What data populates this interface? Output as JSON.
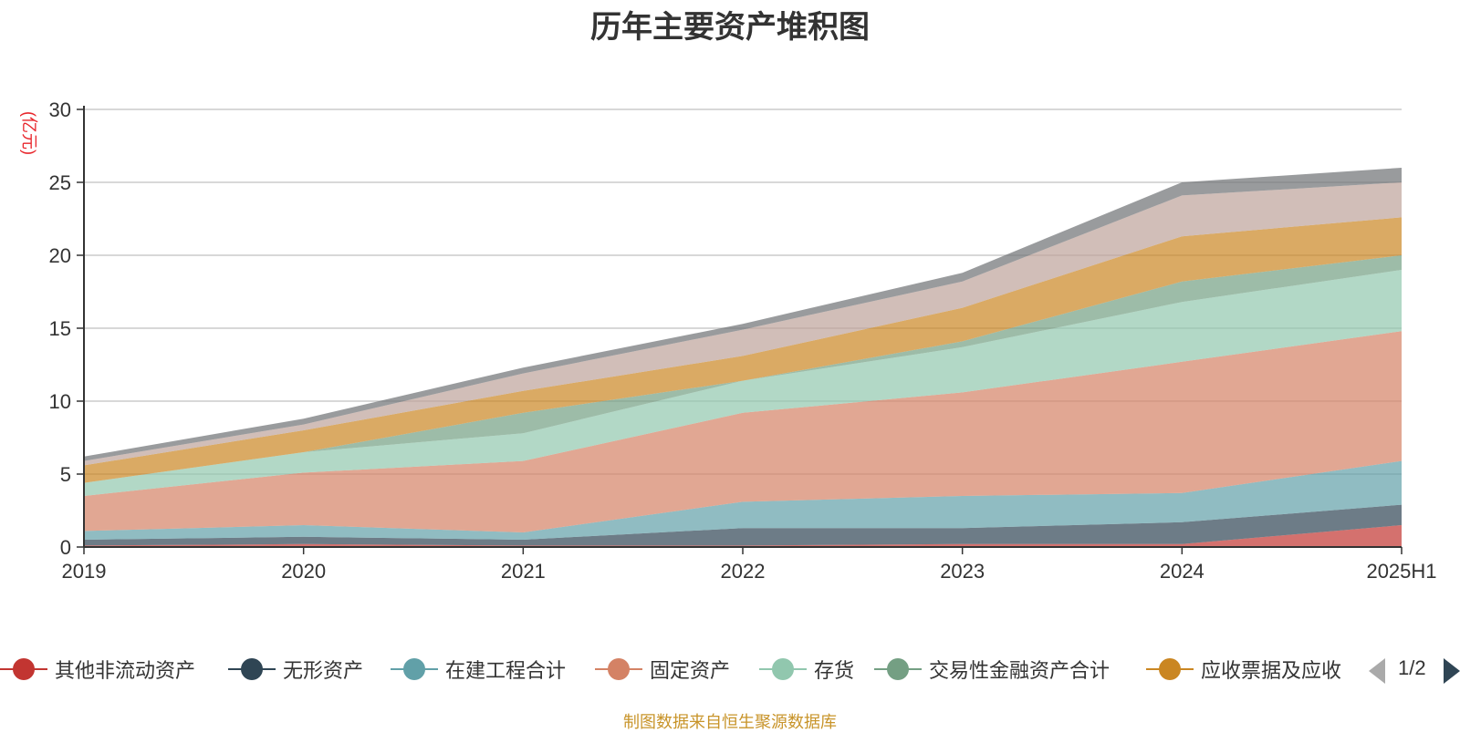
{
  "title": "历年主要资产堆积图",
  "unit_label": "(亿元)",
  "source": "制图数据来自恒生聚源数据库",
  "pager": {
    "text": "1/2"
  },
  "chart_data": {
    "type": "area",
    "stacked": true,
    "x": [
      "2019",
      "2020",
      "2021",
      "2022",
      "2023",
      "2024",
      "2025H1"
    ],
    "ylim": [
      0,
      30
    ],
    "yticks": [
      0,
      5,
      10,
      15,
      20,
      25,
      30
    ],
    "grid": true,
    "series": [
      {
        "name": "其他非流动资产",
        "color": "#c23531",
        "values": [
          0.1,
          0.2,
          0.1,
          0.1,
          0.2,
          0.2,
          1.5
        ]
      },
      {
        "name": "无形资产",
        "color": "#2f4554",
        "values": [
          0.4,
          0.5,
          0.4,
          1.2,
          1.1,
          1.5,
          1.4
        ]
      },
      {
        "name": "在建工程合计",
        "color": "#61a0a8",
        "values": [
          0.6,
          0.8,
          0.5,
          1.8,
          2.2,
          2.0,
          3.0
        ]
      },
      {
        "name": "固定资产",
        "color": "#d48265",
        "values": [
          2.4,
          3.6,
          4.9,
          6.1,
          7.1,
          9.0,
          8.9
        ]
      },
      {
        "name": "存货",
        "color": "#91c7ae",
        "values": [
          0.9,
          1.4,
          1.9,
          2.2,
          3.1,
          4.1,
          4.2
        ]
      },
      {
        "name": "交易性金融资产合计",
        "color": "#749f83",
        "values": [
          0.0,
          0.0,
          1.4,
          0.0,
          0.4,
          1.4,
          1.0
        ]
      },
      {
        "name": "应收票据及应收",
        "color": "#ca8622",
        "values": [
          1.2,
          1.5,
          1.5,
          1.7,
          2.3,
          3.1,
          2.6
        ]
      },
      {
        "color": "#bda29a",
        "values": [
          0.3,
          0.4,
          1.2,
          1.8,
          1.8,
          2.8,
          2.4
        ]
      },
      {
        "color": "#6e7074",
        "values": [
          0.3,
          0.4,
          0.4,
          0.4,
          0.6,
          0.9,
          1.0
        ]
      }
    ]
  }
}
